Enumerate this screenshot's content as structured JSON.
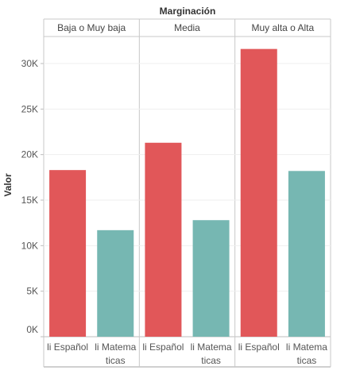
{
  "chart_data": {
    "type": "bar",
    "title": "Marginación",
    "ylabel": "Valor",
    "ylim": [
      0,
      33000
    ],
    "y_ticks": [
      0,
      5000,
      10000,
      15000,
      20000,
      25000,
      30000
    ],
    "y_tick_labels": [
      "0K",
      "5K",
      "10K",
      "15K",
      "20K",
      "25K",
      "30K"
    ],
    "categories": [
      "li Español",
      "li Matematicas"
    ],
    "category_label_lines": [
      [
        "li Español"
      ],
      [
        "li Matema",
        "ticas"
      ]
    ],
    "panels": [
      {
        "name": "Baja o Muy baja",
        "values": [
          18300,
          11700
        ]
      },
      {
        "name": "Media",
        "values": [
          21300,
          12800
        ]
      },
      {
        "name": "Muy alta o Alta",
        "values": [
          31600,
          18200
        ]
      }
    ],
    "colors": {
      "li Español": "#e15759",
      "li Matematicas": "#76b7b2"
    },
    "grid": true
  }
}
